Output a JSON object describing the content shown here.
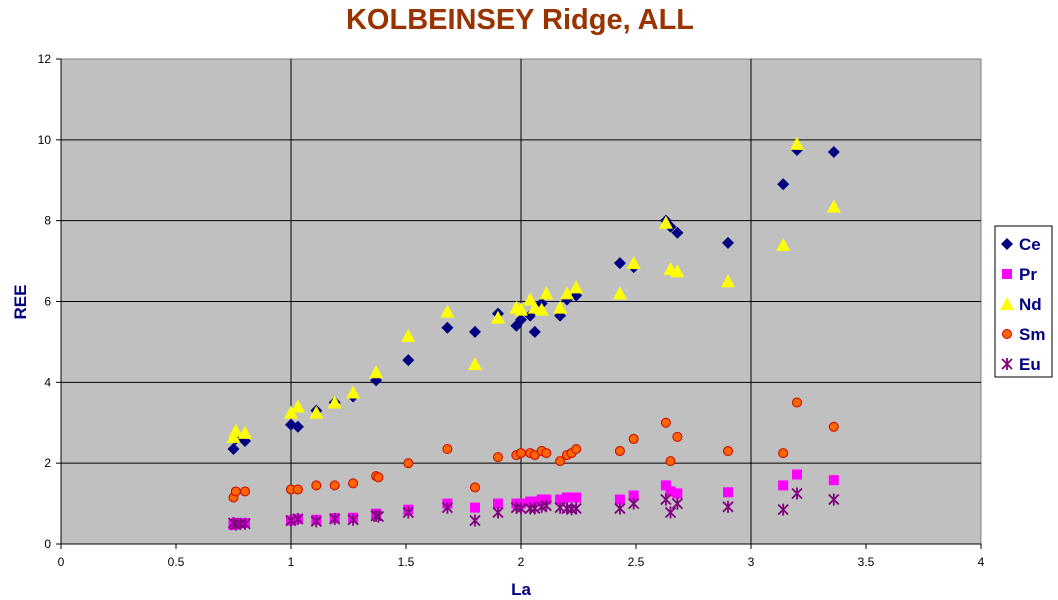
{
  "chart_data": {
    "type": "scatter",
    "title": "KOLBEINSEY Ridge, ALL",
    "xlabel": "La",
    "ylabel": "REE",
    "xlim": [
      0,
      4
    ],
    "ylim": [
      0,
      12
    ],
    "x_ticks": [
      "0",
      "0.5",
      "1",
      "1.5",
      "2",
      "2.5",
      "3",
      "3.5",
      "4"
    ],
    "y_ticks": [
      "0",
      "2",
      "4",
      "6",
      "8",
      "10",
      "12"
    ],
    "grid": true,
    "legend_position": "right",
    "plot_background": "#c0c0c0",
    "series": [
      {
        "name": "Ce",
        "marker": "diamond",
        "color": "#000080",
        "x": [
          0.75,
          0.76,
          0.8,
          1.0,
          1.03,
          1.11,
          1.19,
          1.27,
          1.37,
          1.51,
          1.68,
          1.8,
          1.9,
          1.98,
          2.0,
          2.04,
          2.06,
          2.09,
          2.17,
          2.2,
          2.24,
          2.43,
          2.49,
          2.63,
          2.65,
          2.68,
          2.9,
          3.14,
          3.2,
          3.36
        ],
        "y": [
          2.35,
          2.6,
          2.55,
          2.95,
          2.9,
          3.3,
          3.5,
          3.65,
          4.05,
          4.55,
          5.35,
          5.25,
          5.7,
          5.4,
          5.55,
          5.65,
          5.25,
          5.95,
          5.65,
          6.05,
          6.15,
          6.95,
          6.85,
          8.0,
          7.85,
          7.7,
          7.45,
          8.9,
          9.75,
          9.7
        ]
      },
      {
        "name": "Pr",
        "marker": "square",
        "color": "#ff00ff",
        "x": [
          0.75,
          0.76,
          0.8,
          1.0,
          1.03,
          1.11,
          1.19,
          1.27,
          1.37,
          1.51,
          1.68,
          1.8,
          1.9,
          1.98,
          2.0,
          2.04,
          2.06,
          2.09,
          2.11,
          2.17,
          2.2,
          2.22,
          2.24,
          2.43,
          2.49,
          2.63,
          2.65,
          2.68,
          2.9,
          3.14,
          3.2,
          3.36
        ],
        "y": [
          0.47,
          0.52,
          0.52,
          0.58,
          0.62,
          0.6,
          0.64,
          0.65,
          0.75,
          0.85,
          1.0,
          0.9,
          1.0,
          1.0,
          1.0,
          1.05,
          1.05,
          1.1,
          1.1,
          1.1,
          1.15,
          1.15,
          1.15,
          1.1,
          1.2,
          1.45,
          1.3,
          1.25,
          1.28,
          1.45,
          1.72,
          1.58
        ]
      },
      {
        "name": "Nd",
        "marker": "triangle",
        "color": "#ffff00",
        "x": [
          0.75,
          0.76,
          0.8,
          1.0,
          1.03,
          1.11,
          1.19,
          1.27,
          1.37,
          1.51,
          1.68,
          1.8,
          1.9,
          1.98,
          2.0,
          2.04,
          2.06,
          2.09,
          2.11,
          2.17,
          2.2,
          2.24,
          2.43,
          2.49,
          2.63,
          2.65,
          2.68,
          2.9,
          3.14,
          3.2,
          3.36
        ],
        "y": [
          2.65,
          2.8,
          2.75,
          3.25,
          3.4,
          3.25,
          3.5,
          3.75,
          4.25,
          5.15,
          5.75,
          4.45,
          5.6,
          5.85,
          5.8,
          6.05,
          5.85,
          5.8,
          6.2,
          5.85,
          6.2,
          6.35,
          6.2,
          6.95,
          7.95,
          6.8,
          6.75,
          6.5,
          7.4,
          9.9,
          8.35
        ]
      },
      {
        "name": "Sm",
        "marker": "circle",
        "color": "#ff6600",
        "x": [
          0.75,
          0.76,
          0.8,
          1.0,
          1.03,
          1.11,
          1.19,
          1.27,
          1.37,
          1.38,
          1.51,
          1.68,
          1.8,
          1.9,
          1.98,
          2.0,
          2.04,
          2.06,
          2.09,
          2.11,
          2.17,
          2.2,
          2.22,
          2.24,
          2.43,
          2.49,
          2.63,
          2.65,
          2.68,
          2.9,
          3.14,
          3.2,
          3.36
        ],
        "y": [
          1.15,
          1.3,
          1.3,
          1.35,
          1.35,
          1.45,
          1.45,
          1.5,
          1.68,
          1.65,
          2.0,
          2.35,
          1.4,
          2.15,
          2.2,
          2.25,
          2.25,
          2.2,
          2.3,
          2.25,
          2.05,
          2.2,
          2.25,
          2.35,
          2.3,
          2.6,
          3.0,
          2.05,
          2.65,
          2.3,
          2.25,
          3.5,
          2.9
        ]
      },
      {
        "name": "Eu",
        "marker": "asterisk",
        "color": "#800080",
        "x": [
          0.75,
          0.76,
          0.78,
          0.8,
          1.0,
          1.03,
          1.11,
          1.19,
          1.27,
          1.37,
          1.38,
          1.51,
          1.68,
          1.8,
          1.9,
          1.98,
          2.0,
          2.04,
          2.06,
          2.09,
          2.11,
          2.17,
          2.2,
          2.22,
          2.24,
          2.43,
          2.49,
          2.63,
          2.65,
          2.68,
          2.9,
          3.14,
          3.2,
          3.36
        ],
        "y": [
          0.52,
          0.48,
          0.5,
          0.5,
          0.58,
          0.62,
          0.56,
          0.62,
          0.6,
          0.7,
          0.68,
          0.78,
          0.9,
          0.58,
          0.78,
          0.9,
          0.88,
          0.88,
          0.88,
          0.92,
          0.95,
          0.9,
          0.88,
          0.86,
          0.88,
          0.88,
          1.0,
          1.1,
          0.78,
          1.0,
          0.92,
          0.85,
          1.25,
          1.1
        ]
      }
    ]
  }
}
